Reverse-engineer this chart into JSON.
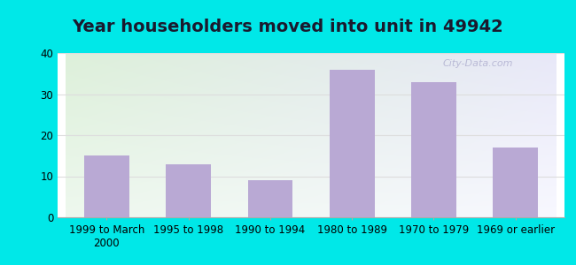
{
  "title": "Year householders moved into unit in 49942",
  "categories": [
    "1999 to March\n2000",
    "1995 to 1998",
    "1990 to 1994",
    "1980 to 1989",
    "1970 to 1979",
    "1969 or earlier"
  ],
  "values": [
    15,
    13,
    9,
    36,
    33,
    17
  ],
  "bar_color": "#b9a9d4",
  "ylim": [
    0,
    40
  ],
  "yticks": [
    0,
    10,
    20,
    30,
    40
  ],
  "background_outer": "#00e8e8",
  "bg_top_left": "#ddf0da",
  "bg_top_right": "#e8e8f8",
  "bg_bottom_left": "#e8f8e8",
  "bg_bottom_right": "#f8f8ff",
  "grid_color": "#dddddd",
  "title_fontsize": 14,
  "tick_fontsize": 8.5
}
